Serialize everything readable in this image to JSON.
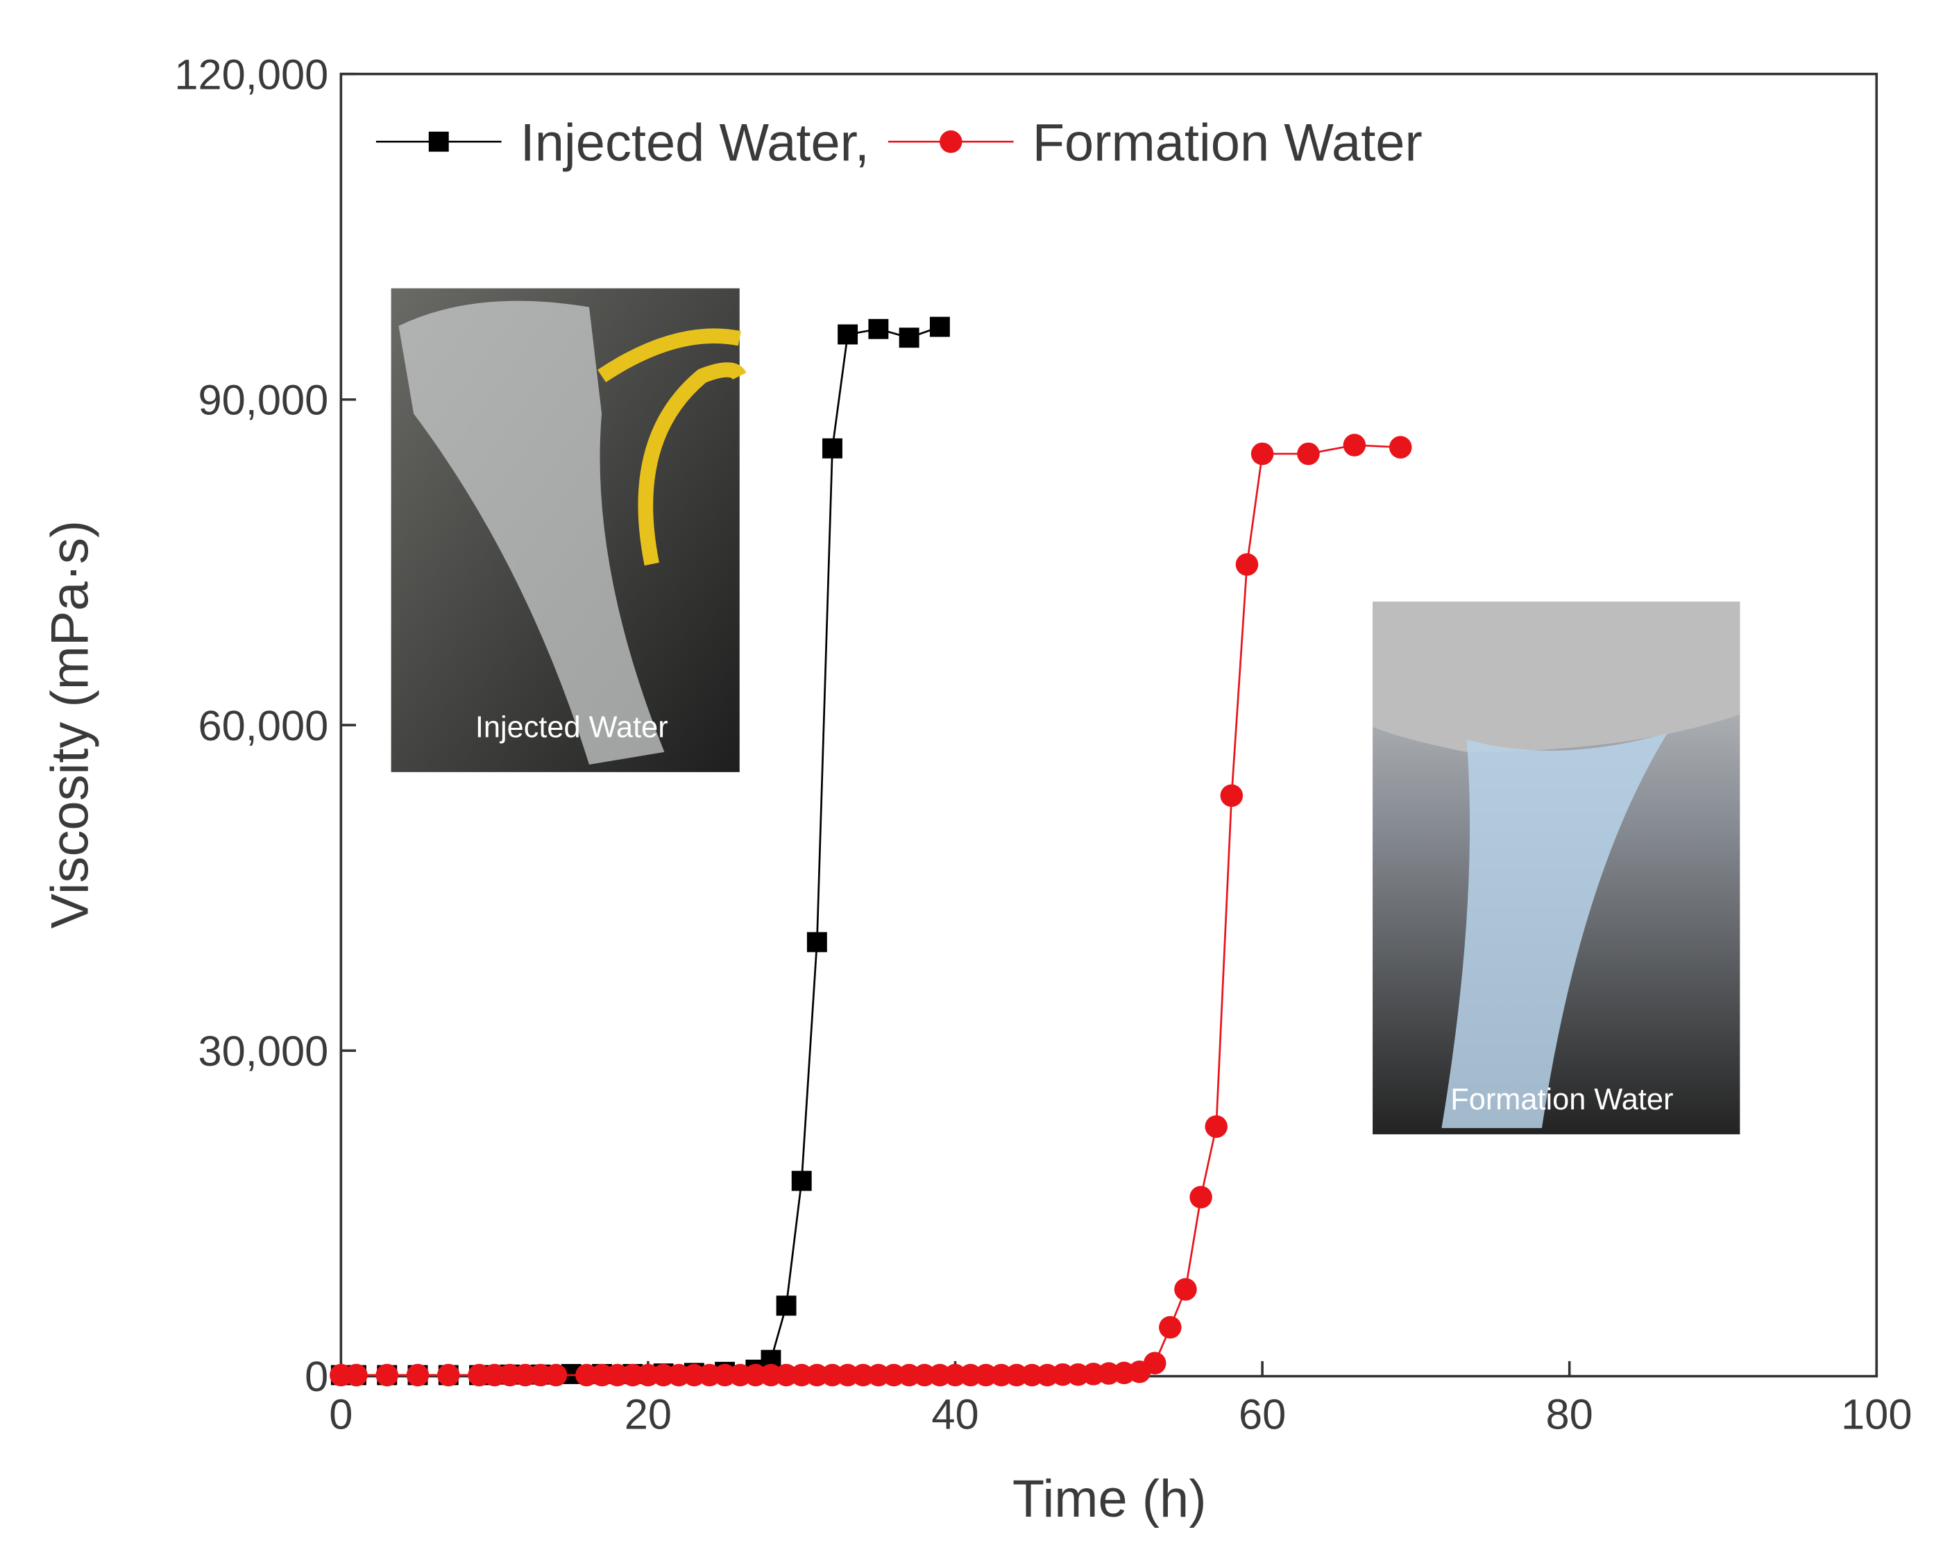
{
  "chart_data": {
    "type": "line",
    "xlabel": "Time (h)",
    "ylabel": "Viscosity (mPa·s)",
    "xlim": [
      0,
      100
    ],
    "xticks": [
      0,
      20,
      40,
      60,
      80,
      100
    ],
    "ylim": [
      0,
      120000
    ],
    "yticks": [
      0,
      {
        "value": 30000,
        "label": "30,000"
      },
      {
        "value": 60000,
        "label": "60,000"
      },
      {
        "value": 90000,
        "label": "90,000"
      },
      {
        "value": 120000,
        "label": "120,000"
      }
    ],
    "legend": "upper left",
    "series": [
      {
        "name": "Injected Water,",
        "color": "#000000",
        "marker": "square",
        "x": [
          0,
          1,
          3,
          5,
          7,
          9,
          11,
          13,
          15,
          17,
          19,
          21,
          23,
          25,
          27,
          28,
          29,
          30,
          31,
          32,
          33,
          35,
          37,
          39
        ],
        "values": [
          100,
          100,
          100,
          100,
          100,
          100,
          150,
          150,
          200,
          200,
          200,
          250,
          300,
          400,
          600,
          1500,
          6500,
          18000,
          40000,
          85500,
          96000,
          96500,
          95700,
          96700
        ]
      },
      {
        "name": "Formation Water",
        "color": "#e8141a",
        "marker": "circle",
        "x": [
          0,
          1,
          3,
          5,
          7,
          9,
          10,
          11,
          12,
          13,
          14,
          16,
          17,
          18,
          19,
          20,
          21,
          22,
          23,
          24,
          25,
          26,
          27,
          28,
          29,
          30,
          31,
          32,
          33,
          34,
          35,
          36,
          37,
          38,
          39,
          40,
          41,
          42,
          43,
          44,
          45,
          46,
          47,
          48,
          49,
          50,
          51,
          52,
          53,
          54,
          55,
          56,
          57,
          58,
          59,
          60,
          63,
          66,
          69
        ],
        "values": [
          100,
          100,
          100,
          100,
          100,
          100,
          100,
          100,
          100,
          100,
          100,
          100,
          100,
          100,
          100,
          100,
          100,
          100,
          100,
          100,
          100,
          100,
          100,
          100,
          100,
          100,
          100,
          100,
          100,
          100,
          100,
          100,
          100,
          100,
          100,
          100,
          100,
          100,
          100,
          100,
          100,
          100,
          150,
          150,
          200,
          250,
          300,
          400,
          1200,
          4500,
          8000,
          16500,
          23000,
          53500,
          74800,
          85000,
          85000,
          85800,
          85600
        ]
      }
    ],
    "insets": [
      "Injected Water",
      "Formation Water"
    ]
  }
}
